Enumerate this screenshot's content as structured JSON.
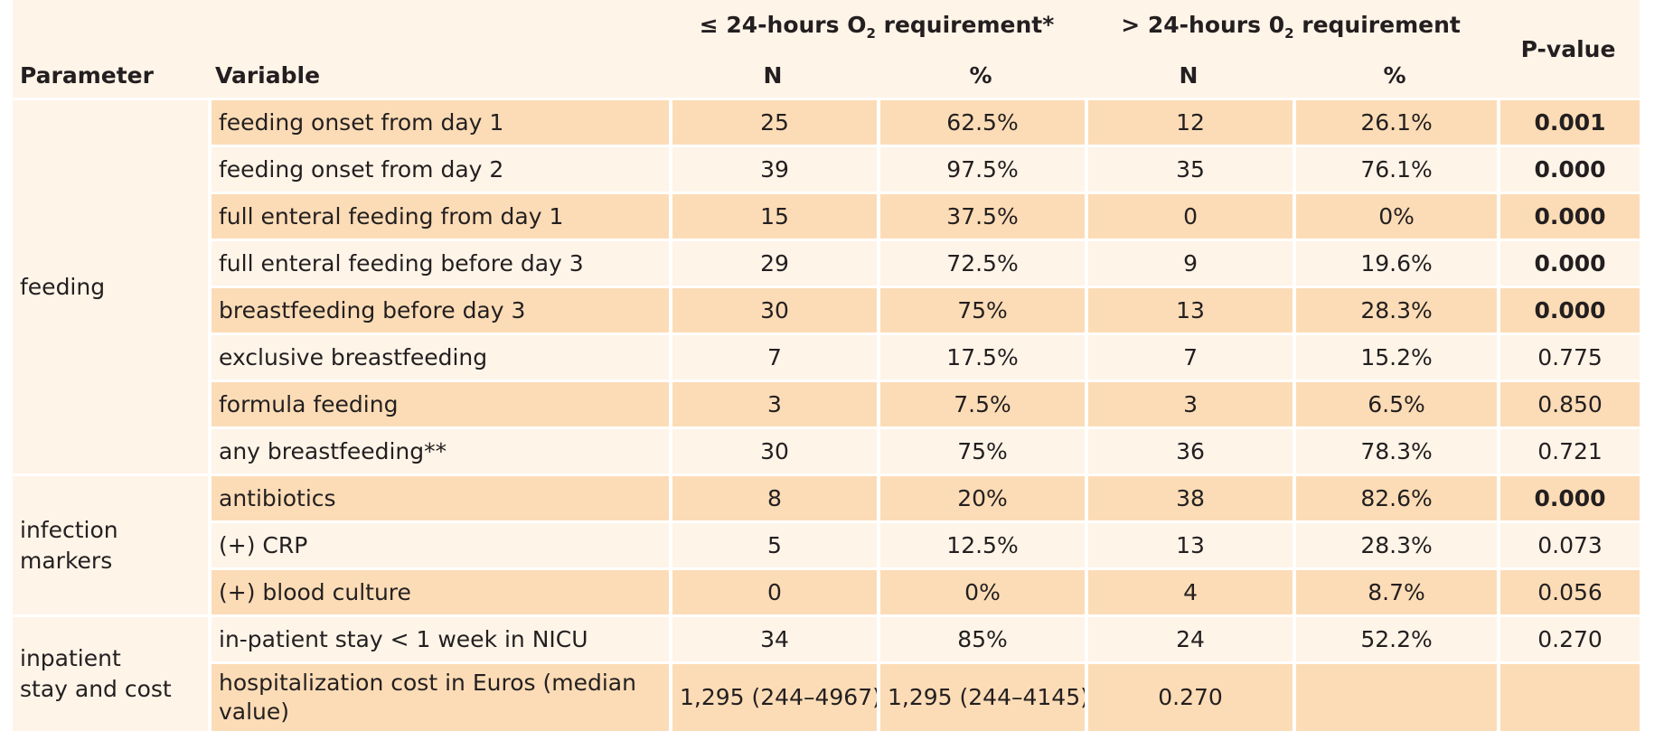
{
  "header": {
    "parameter": "Parameter",
    "variable": "Variable",
    "group1_prefix": "≤ 24-hours O",
    "group1_sub": "2",
    "group1_suffix": " requirement*",
    "group2_prefix": "> 24-hours 0",
    "group2_sub": "2",
    "group2_suffix": " requirement",
    "n": "N",
    "pct": "%",
    "pvalue": "P-value"
  },
  "groups": [
    {
      "parameter_line1": "feeding",
      "parameter_line2": "",
      "rows": [
        {
          "variable": "feeding onset from day 1",
          "n1": "25",
          "p1": "62.5%",
          "n2": "12",
          "p2": "26.1%",
          "pval": "0.001",
          "bold": true,
          "shade": "hl"
        },
        {
          "variable": "feeding onset from day 2",
          "n1": "39",
          "p1": "97.5%",
          "n2": "35",
          "p2": "76.1%",
          "pval": "0.000",
          "bold": true,
          "shade": "pl"
        },
        {
          "variable": "full enteral feeding from day 1",
          "n1": "15",
          "p1": "37.5%",
          "n2": "0",
          "p2": "0%",
          "pval": "0.000",
          "bold": true,
          "shade": "hl"
        },
        {
          "variable": "full enteral feeding before day 3",
          "n1": "29",
          "p1": "72.5%",
          "n2": "9",
          "p2": "19.6%",
          "pval": "0.000",
          "bold": true,
          "shade": "pl"
        },
        {
          "variable": "breastfeeding before day 3",
          "n1": "30",
          "p1": "75%",
          "n2": "13",
          "p2": "28.3%",
          "pval": "0.000",
          "bold": true,
          "shade": "hl"
        },
        {
          "variable": "exclusive breastfeeding",
          "n1": "7",
          "p1": "17.5%",
          "n2": "7",
          "p2": "15.2%",
          "pval": "0.775",
          "bold": false,
          "shade": "pl"
        },
        {
          "variable": "formula feeding",
          "n1": "3",
          "p1": "7.5%",
          "n2": "3",
          "p2": "6.5%",
          "pval": "0.850",
          "bold": false,
          "shade": "hl"
        },
        {
          "variable": "any breastfeeding**",
          "n1": "30",
          "p1": "75%",
          "n2": "36",
          "p2": "78.3%",
          "pval": "0.721",
          "bold": false,
          "shade": "pl"
        }
      ]
    },
    {
      "parameter_line1": "infection",
      "parameter_line2": "markers",
      "rows": [
        {
          "variable": "antibiotics",
          "n1": "8",
          "p1": "20%",
          "n2": "38",
          "p2": "82.6%",
          "pval": "0.000",
          "bold": true,
          "shade": "hl"
        },
        {
          "variable": "(+) CRP",
          "n1": "5",
          "p1": "12.5%",
          "n2": "13",
          "p2": "28.3%",
          "pval": "0.073",
          "bold": false,
          "shade": "pl"
        },
        {
          "variable": "(+) blood culture",
          "n1": "0",
          "p1": "0%",
          "n2": "4",
          "p2": "8.7%",
          "pval": "0.056",
          "bold": false,
          "shade": "hl"
        }
      ]
    },
    {
      "parameter_line1": "inpatient",
      "parameter_line2": "stay and cost",
      "rows": [
        {
          "variable": "in-patient stay < 1 week in NICU",
          "n1": "34",
          "p1": "85%",
          "n2": "24",
          "p2": "52.2%",
          "pval": "0.270",
          "bold": false,
          "shade": "pl"
        },
        {
          "variable": "hospitalization cost in Euros (median value)",
          "n1": "1,295 (244–4967)",
          "p1": "1,295 (244–4145)",
          "n2": "0.270",
          "p2": "",
          "pval": "",
          "bold": false,
          "shade": "hl"
        }
      ]
    }
  ]
}
